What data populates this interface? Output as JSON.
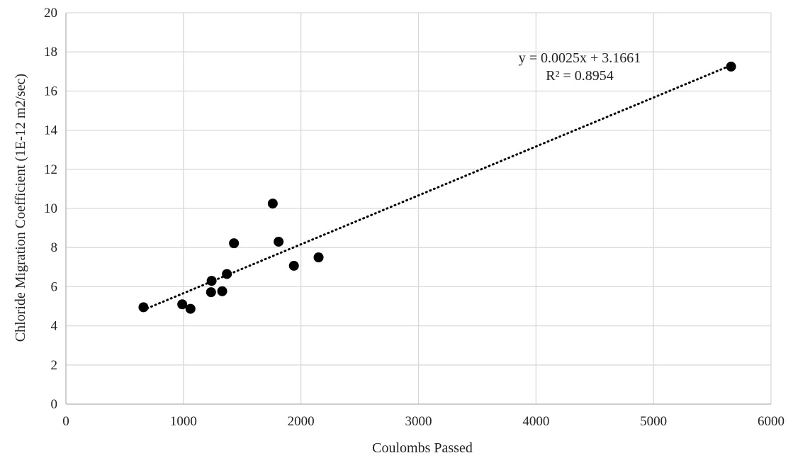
{
  "chart_data": {
    "type": "scatter",
    "xlabel": "Coulombs Passed",
    "ylabel": "Chloride Migration Coefficient (1E-12 m2/sec)",
    "xlim": [
      0,
      6000
    ],
    "ylim": [
      0,
      20
    ],
    "x_ticks": [
      "0",
      "1000",
      "2000",
      "3000",
      "4000",
      "5000",
      "6000"
    ],
    "y_ticks": [
      "0",
      "2",
      "4",
      "6",
      "8",
      "10",
      "12",
      "14",
      "16",
      "18",
      "20"
    ],
    "grid": true,
    "points": [
      {
        "x": 660,
        "y": 4.95
      },
      {
        "x": 990,
        "y": 5.1
      },
      {
        "x": 1060,
        "y": 4.87
      },
      {
        "x": 1235,
        "y": 5.72
      },
      {
        "x": 1240,
        "y": 6.3
      },
      {
        "x": 1330,
        "y": 5.77
      },
      {
        "x": 1370,
        "y": 6.65
      },
      {
        "x": 1430,
        "y": 8.22
      },
      {
        "x": 1760,
        "y": 10.25
      },
      {
        "x": 1810,
        "y": 8.3
      },
      {
        "x": 1940,
        "y": 7.07
      },
      {
        "x": 2150,
        "y": 7.5
      },
      {
        "x": 5660,
        "y": 17.25
      }
    ],
    "trendline": {
      "type": "linear",
      "slope": 0.0025,
      "intercept": 3.1661,
      "x_range": [
        660,
        5660
      ],
      "equation_label": "y = 0.0025x + 3.1661",
      "r2_label": "R² = 0.8954"
    },
    "colors": {
      "point": "#000000",
      "trendline": "#000000",
      "grid": "#d9d9d9",
      "axis": "#bfbfbf"
    }
  }
}
